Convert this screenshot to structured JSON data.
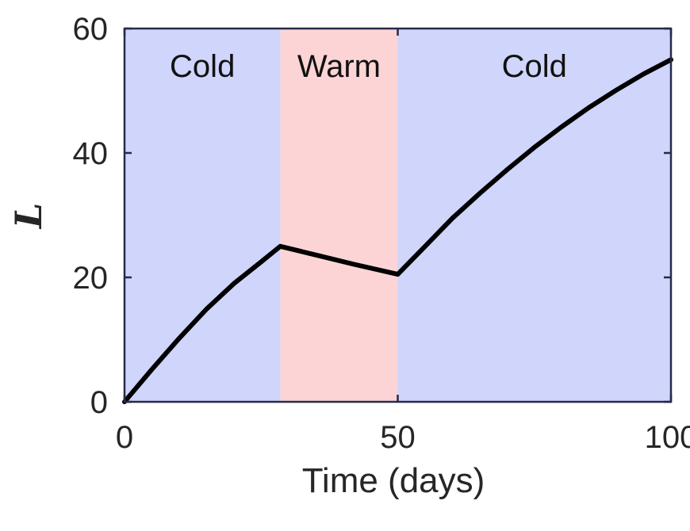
{
  "chart_data": {
    "type": "line",
    "title": "",
    "xlabel": "Time (days)",
    "ylabel": "L",
    "xlim": [
      0,
      100
    ],
    "ylim": [
      0,
      60
    ],
    "xticks": [
      0,
      50,
      100
    ],
    "yticks": [
      0,
      20,
      40,
      60
    ],
    "grid": false,
    "colors": {
      "cold": "#d0d5fc",
      "warm": "#fdd4d6",
      "line": "#000000",
      "axis": "#262a48"
    },
    "regions": [
      {
        "label": "Cold",
        "start": 0,
        "end": 28.5,
        "kind": "cold"
      },
      {
        "label": "Warm",
        "start": 28.5,
        "end": 50,
        "kind": "warm"
      },
      {
        "label": "Cold",
        "start": 50,
        "end": 100,
        "kind": "cold"
      }
    ],
    "series": [
      {
        "x": [
          0,
          5,
          10,
          15,
          20,
          25,
          28.5,
          35,
          42,
          50,
          55,
          60,
          65,
          70,
          75,
          80,
          85,
          90,
          95,
          100
        ],
        "y": [
          0,
          5.2,
          10.2,
          14.9,
          19.0,
          22.5,
          25.0,
          23.6,
          22.1,
          20.5,
          25.0,
          29.5,
          33.5,
          37.3,
          40.9,
          44.2,
          47.3,
          50.1,
          52.7,
          55.0
        ]
      }
    ]
  }
}
